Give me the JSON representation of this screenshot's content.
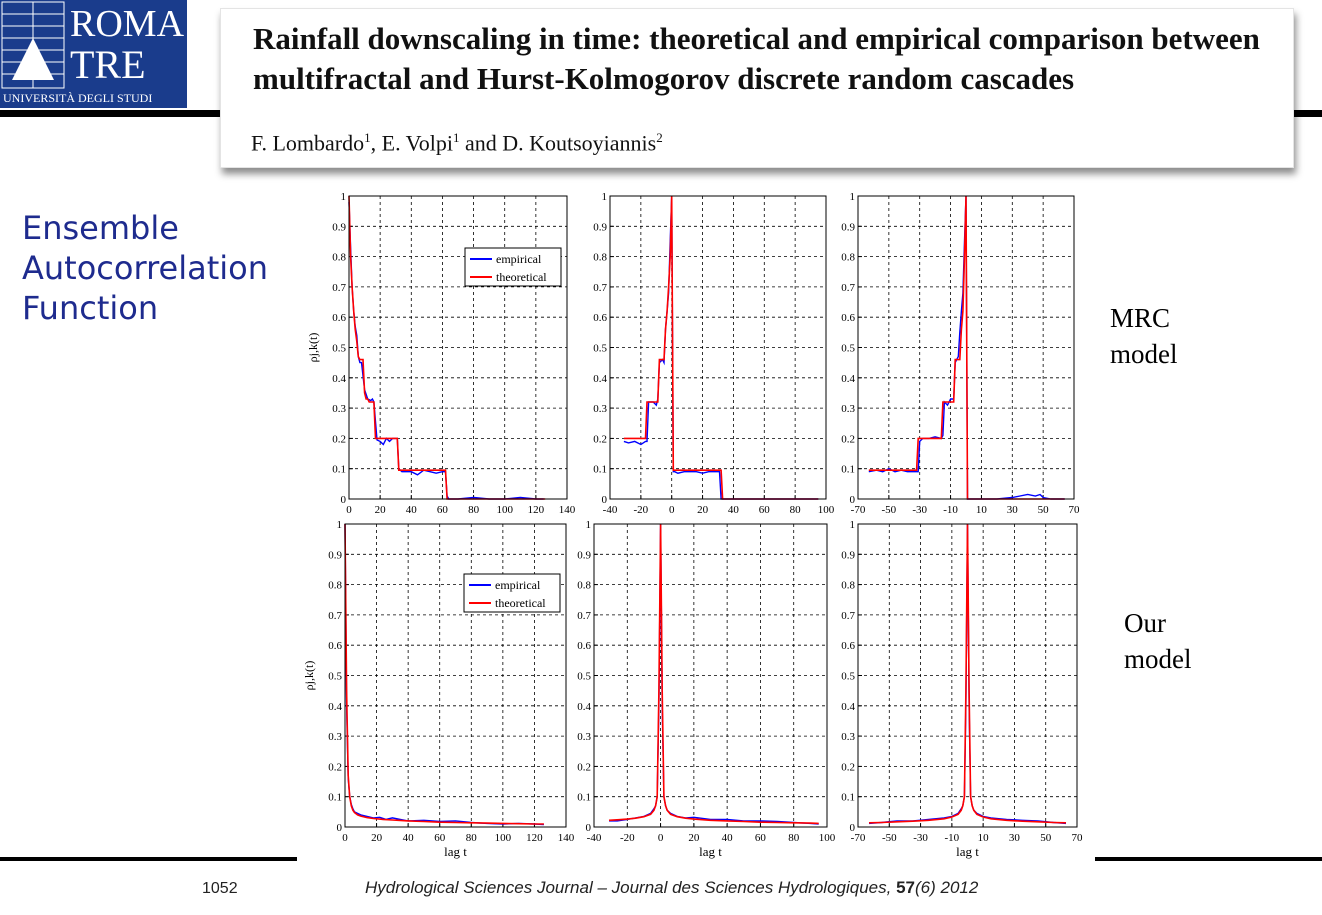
{
  "header": {
    "logo": {
      "line1": "ROMA",
      "line2": "TRE",
      "line3": "UNIVERSITÀ DEGLI STUDI"
    },
    "title": "Rainfall downscaling in time: theoretical and empirical comparison between multifractal and Hurst-Kolmogorov discrete random cascades",
    "authors": [
      {
        "name": "F. Lombardo",
        "sup": "1",
        "sep": ", "
      },
      {
        "name": "E. Volpi",
        "sup": "1",
        "sep": " and "
      },
      {
        "name": "D. Koutsoyiannis",
        "sup": "2",
        "sep": ""
      }
    ]
  },
  "side_label": "Ensemble Autocorrelation Function",
  "row_labels": {
    "top": "MRC model",
    "bottom": "Our model"
  },
  "footer": {
    "page": "1052",
    "journal": "Hydrological Sciences Journal – Journal des Sciences Hydrologiques,",
    "volume": "57",
    "issue_year": "(6) 2012"
  },
  "colors": {
    "empirical": "#0000ff",
    "theoretical": "#ff0000",
    "side_label": "#1e2b8e"
  },
  "chart_data": [
    {
      "type": "line",
      "row": "MRC model",
      "xlabel": "",
      "ylabel": "ρj,k(t)",
      "xlim": [
        0,
        140
      ],
      "ylim": [
        0,
        1
      ],
      "xticks": [
        0,
        20,
        40,
        60,
        80,
        100,
        120,
        140
      ],
      "yticks": [
        0,
        0.1,
        0.2,
        0.3,
        0.4,
        0.5,
        0.6,
        0.7,
        0.8,
        0.9,
        1
      ],
      "grid": true,
      "legend": "top-right",
      "series": [
        {
          "name": "empirical",
          "x": [
            0,
            1,
            2,
            3,
            4,
            5,
            6,
            7,
            8,
            10,
            12,
            14,
            15,
            16,
            18,
            20,
            22,
            24,
            26,
            28,
            30,
            31,
            32,
            34,
            36,
            40,
            44,
            48,
            52,
            56,
            60,
            62,
            63,
            64,
            66,
            70,
            80,
            90,
            100,
            110,
            120,
            125
          ],
          "y": [
            0.98,
            0.83,
            0.7,
            0.62,
            0.57,
            0.54,
            0.47,
            0.45,
            0.45,
            0.36,
            0.33,
            0.325,
            0.33,
            0.32,
            0.195,
            0.19,
            0.18,
            0.2,
            0.19,
            0.2,
            0.2,
            0.2,
            0.1,
            0.09,
            0.09,
            0.09,
            0.08,
            0.095,
            0.09,
            0.085,
            0.09,
            0.09,
            0.01,
            0.0,
            0.0,
            0.0,
            0.005,
            0.0,
            0.0,
            0.005,
            0.0,
            0.0
          ]
        },
        {
          "name": "theoretical",
          "x": [
            0,
            1,
            2,
            3,
            4,
            5,
            6,
            7,
            8,
            9,
            10,
            11,
            12,
            13,
            14,
            15,
            16,
            17,
            18,
            19,
            20,
            30,
            31,
            32,
            33,
            62,
            63,
            64,
            126
          ],
          "y": [
            1.0,
            0.8,
            0.7,
            0.62,
            0.56,
            0.52,
            0.47,
            0.46,
            0.46,
            0.46,
            0.35,
            0.33,
            0.33,
            0.32,
            0.32,
            0.32,
            0.32,
            0.2,
            0.2,
            0.2,
            0.2,
            0.2,
            0.2,
            0.095,
            0.095,
            0.095,
            0.0,
            0.0,
            0.0
          ]
        }
      ]
    },
    {
      "type": "line",
      "row": "MRC model",
      "xlabel": "",
      "ylabel": "",
      "xlim": [
        -40,
        100
      ],
      "ylim": [
        0,
        1
      ],
      "xticks": [
        -40,
        -20,
        0,
        20,
        40,
        60,
        80,
        100
      ],
      "yticks": [
        0,
        0.1,
        0.2,
        0.3,
        0.4,
        0.5,
        0.6,
        0.7,
        0.8,
        0.9,
        1
      ],
      "grid": true,
      "legend": "none",
      "series": [
        {
          "name": "empirical",
          "x": [
            -31,
            -28,
            -24,
            -20,
            -17,
            -16,
            -15,
            -12,
            -10,
            -9,
            -8,
            -6,
            -5,
            -4,
            -3,
            -2,
            -1,
            0,
            1,
            2,
            4,
            8,
            12,
            16,
            20,
            24,
            28,
            31,
            32,
            33,
            34,
            40,
            60,
            80,
            95
          ],
          "y": [
            0.19,
            0.185,
            0.19,
            0.18,
            0.19,
            0.19,
            0.32,
            0.32,
            0.31,
            0.33,
            0.45,
            0.46,
            0.45,
            0.56,
            0.62,
            0.68,
            0.85,
            1.0,
            0.09,
            0.09,
            0.085,
            0.09,
            0.09,
            0.09,
            0.085,
            0.09,
            0.09,
            0.09,
            0.0,
            0.0,
            0.0,
            0.0,
            0.0,
            0.0,
            0.0
          ]
        },
        {
          "name": "theoretical",
          "x": [
            -31,
            -17,
            -16,
            -9,
            -8,
            -5,
            -4,
            -3,
            -2,
            -1,
            0,
            1,
            32,
            33,
            95
          ],
          "y": [
            0.2,
            0.2,
            0.32,
            0.32,
            0.46,
            0.46,
            0.56,
            0.62,
            0.7,
            0.8,
            1.0,
            0.095,
            0.095,
            0.0,
            0.0
          ]
        }
      ]
    },
    {
      "type": "line",
      "row": "MRC model",
      "xlabel": "",
      "ylabel": "",
      "xlim": [
        -70,
        70
      ],
      "ylim": [
        0,
        1
      ],
      "xticks": [
        -70,
        -50,
        -30,
        -10,
        10,
        30,
        50,
        70
      ],
      "yticks": [
        0,
        0.1,
        0.2,
        0.3,
        0.4,
        0.5,
        0.6,
        0.7,
        0.8,
        0.9,
        1
      ],
      "grid": true,
      "legend": "none",
      "series": [
        {
          "name": "empirical",
          "x": [
            -63,
            -58,
            -54,
            -50,
            -46,
            -42,
            -38,
            -34,
            -31,
            -30,
            -28,
            -24,
            -20,
            -16,
            -15,
            -14,
            -12,
            -10,
            -8,
            -7,
            -6,
            -5,
            -4,
            -3,
            -2,
            -1,
            0,
            1,
            10,
            20,
            30,
            35,
            40,
            45,
            48,
            50,
            55,
            60,
            64
          ],
          "y": [
            0.09,
            0.095,
            0.09,
            0.1,
            0.09,
            0.095,
            0.09,
            0.09,
            0.09,
            0.19,
            0.2,
            0.2,
            0.205,
            0.2,
            0.21,
            0.32,
            0.31,
            0.33,
            0.33,
            0.45,
            0.46,
            0.47,
            0.55,
            0.62,
            0.68,
            0.85,
            1.0,
            0.0,
            0.0,
            0.0,
            0.005,
            0.01,
            0.015,
            0.01,
            0.015,
            0.005,
            0.0,
            0.0,
            0.0
          ]
        },
        {
          "name": "theoretical",
          "x": [
            -63,
            -32,
            -31,
            -16,
            -15,
            -8,
            -7,
            -4,
            -3,
            -2,
            -1,
            0,
            1,
            64
          ],
          "y": [
            0.095,
            0.095,
            0.2,
            0.2,
            0.32,
            0.32,
            0.46,
            0.46,
            0.56,
            0.62,
            0.8,
            1.0,
            0.0,
            0.0
          ]
        }
      ]
    },
    {
      "type": "line",
      "row": "Our model",
      "xlabel": "lag t",
      "ylabel": "ρj,k(t)",
      "xlim": [
        0,
        140
      ],
      "ylim": [
        0,
        1
      ],
      "xticks": [
        0,
        20,
        40,
        60,
        80,
        100,
        120,
        140
      ],
      "yticks": [
        0,
        0.1,
        0.2,
        0.3,
        0.4,
        0.5,
        0.6,
        0.7,
        0.8,
        0.9,
        1
      ],
      "grid": true,
      "legend": "top-right",
      "series": [
        {
          "name": "empirical",
          "x": [
            0,
            1,
            2,
            3,
            4,
            5,
            6,
            8,
            10,
            14,
            18,
            22,
            26,
            30,
            35,
            40,
            50,
            60,
            70,
            80,
            90,
            100,
            110,
            120,
            126
          ],
          "y": [
            1.0,
            0.4,
            0.16,
            0.1,
            0.075,
            0.06,
            0.05,
            0.045,
            0.04,
            0.035,
            0.03,
            0.032,
            0.025,
            0.03,
            0.025,
            0.02,
            0.022,
            0.018,
            0.02,
            0.015,
            0.012,
            0.01,
            0.012,
            0.01,
            0.008
          ]
        },
        {
          "name": "theoretical",
          "x": [
            0,
            1,
            2,
            3,
            4,
            5,
            6,
            8,
            10,
            14,
            18,
            24,
            30,
            40,
            50,
            60,
            70,
            80,
            90,
            100,
            110,
            120,
            126
          ],
          "y": [
            1.0,
            0.45,
            0.17,
            0.1,
            0.07,
            0.055,
            0.048,
            0.04,
            0.036,
            0.031,
            0.028,
            0.025,
            0.023,
            0.02,
            0.018,
            0.016,
            0.015,
            0.014,
            0.013,
            0.012,
            0.011,
            0.01,
            0.01
          ]
        }
      ]
    },
    {
      "type": "line",
      "row": "Our model",
      "xlabel": "lag t",
      "ylabel": "",
      "xlim": [
        -40,
        100
      ],
      "ylim": [
        0,
        1
      ],
      "xticks": [
        -40,
        -20,
        0,
        20,
        40,
        60,
        80,
        100
      ],
      "yticks": [
        0,
        0.1,
        0.2,
        0.3,
        0.4,
        0.5,
        0.6,
        0.7,
        0.8,
        0.9,
        1
      ],
      "grid": true,
      "legend": "none",
      "series": [
        {
          "name": "empirical",
          "x": [
            -31,
            -26,
            -20,
            -15,
            -10,
            -6,
            -4,
            -3,
            -2,
            -1,
            0,
            1,
            2,
            3,
            4,
            6,
            10,
            15,
            20,
            30,
            40,
            50,
            60,
            70,
            80,
            90,
            95
          ],
          "y": [
            0.02,
            0.02,
            0.025,
            0.03,
            0.035,
            0.045,
            0.06,
            0.07,
            0.1,
            0.4,
            1.0,
            0.4,
            0.1,
            0.07,
            0.055,
            0.045,
            0.035,
            0.03,
            0.032,
            0.025,
            0.025,
            0.02,
            0.02,
            0.018,
            0.015,
            0.012,
            0.01
          ]
        },
        {
          "name": "theoretical",
          "x": [
            -31,
            -25,
            -20,
            -15,
            -10,
            -6,
            -4,
            -3,
            -2,
            -1,
            0,
            1,
            2,
            3,
            4,
            6,
            10,
            15,
            20,
            30,
            40,
            50,
            60,
            70,
            80,
            90,
            95
          ],
          "y": [
            0.022,
            0.024,
            0.026,
            0.029,
            0.034,
            0.042,
            0.055,
            0.07,
            0.1,
            0.45,
            1.0,
            0.45,
            0.1,
            0.07,
            0.055,
            0.042,
            0.034,
            0.029,
            0.026,
            0.022,
            0.02,
            0.018,
            0.016,
            0.015,
            0.014,
            0.013,
            0.012
          ]
        }
      ]
    },
    {
      "type": "line",
      "row": "Our model",
      "xlabel": "lag t",
      "ylabel": "",
      "xlim": [
        -70,
        70
      ],
      "ylim": [
        0,
        1
      ],
      "xticks": [
        -70,
        -50,
        -30,
        -10,
        10,
        30,
        50,
        70
      ],
      "yticks": [
        0,
        0.1,
        0.2,
        0.3,
        0.4,
        0.5,
        0.6,
        0.7,
        0.8,
        0.9,
        1
      ],
      "grid": true,
      "legend": "none",
      "series": [
        {
          "name": "empirical",
          "x": [
            -63,
            -55,
            -45,
            -35,
            -25,
            -15,
            -10,
            -6,
            -4,
            -3,
            -2,
            -1,
            0,
            1,
            2,
            3,
            4,
            6,
            10,
            15,
            25,
            35,
            45,
            55,
            63
          ],
          "y": [
            0.012,
            0.015,
            0.02,
            0.02,
            0.025,
            0.03,
            0.035,
            0.045,
            0.06,
            0.07,
            0.1,
            0.4,
            1.0,
            0.4,
            0.1,
            0.07,
            0.055,
            0.045,
            0.035,
            0.03,
            0.025,
            0.022,
            0.02,
            0.015,
            0.012
          ]
        },
        {
          "name": "theoretical",
          "x": [
            -63,
            -55,
            -45,
            -35,
            -25,
            -15,
            -10,
            -6,
            -4,
            -3,
            -2,
            -1,
            0,
            1,
            2,
            3,
            4,
            6,
            10,
            15,
            25,
            35,
            45,
            55,
            63
          ],
          "y": [
            0.014,
            0.015,
            0.017,
            0.019,
            0.022,
            0.027,
            0.033,
            0.042,
            0.055,
            0.07,
            0.1,
            0.45,
            1.0,
            0.45,
            0.1,
            0.07,
            0.055,
            0.042,
            0.033,
            0.027,
            0.022,
            0.019,
            0.017,
            0.015,
            0.014
          ]
        }
      ]
    }
  ]
}
